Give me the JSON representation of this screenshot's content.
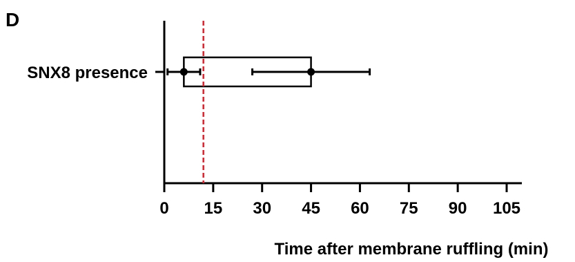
{
  "chart_data": {
    "type": "box",
    "panel_label": "D",
    "categories": [
      "SNX8 presence"
    ],
    "xlabel": "Time after membrane ruffling (min)",
    "ylabel": "",
    "xlim": [
      0,
      105
    ],
    "xticks": [
      0,
      15,
      30,
      45,
      60,
      75,
      90,
      105
    ],
    "grid": false,
    "series": [
      {
        "category": "SNX8 presence",
        "box": [
          6,
          45
        ],
        "points": [
          {
            "x": 6,
            "err_low": 1,
            "err_high": 11
          },
          {
            "x": 45,
            "err_low": 27,
            "err_high": 63
          }
        ]
      }
    ],
    "reference_line": {
      "x": 12,
      "style": "dashed",
      "color": "#e0202a"
    },
    "colors": {
      "axis": "#000000",
      "reference": "#e0202a",
      "box_fill": "#ffffff"
    }
  }
}
